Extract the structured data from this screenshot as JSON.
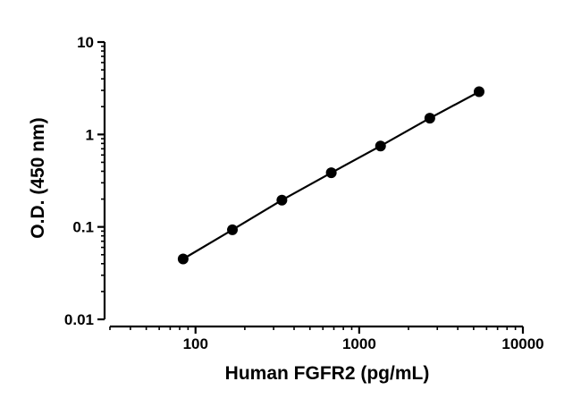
{
  "chart_data": {
    "type": "scatter",
    "xscale": "log",
    "yscale": "log",
    "xlim": [
      30,
      10000
    ],
    "ylim": [
      0.01,
      10
    ],
    "xlabel": "Human FGFR2 (pg/mL)",
    "ylabel": "O.D. (450 nm)",
    "xticks": [
      100,
      1000,
      10000
    ],
    "xtick_labels": [
      "100",
      "1000",
      "10000"
    ],
    "yticks": [
      0.01,
      0.1,
      1,
      10
    ],
    "ytick_labels": [
      "0.01",
      "0.1",
      "1",
      "10"
    ],
    "grid": false,
    "series": [
      {
        "x": [
          84,
          168,
          337,
          675,
          1350,
          2700,
          5400
        ],
        "y": [
          0.045,
          0.093,
          0.195,
          0.385,
          0.75,
          1.5,
          2.9
        ],
        "marker": "circle",
        "line": true,
        "color": "#000000"
      }
    ]
  }
}
